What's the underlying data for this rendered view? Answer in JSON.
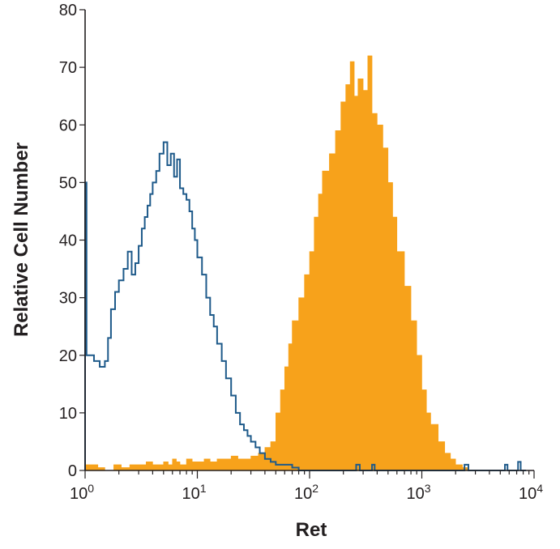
{
  "chart_data": {
    "type": "histogram",
    "title": "",
    "xlabel": "Ret",
    "ylabel": "Relative Cell Number",
    "xscale": "log",
    "xlim": [
      1,
      10000
    ],
    "ylim": [
      0,
      80
    ],
    "grid": false,
    "legend": "none",
    "y_ticks": [
      0,
      10,
      20,
      30,
      40,
      50,
      60,
      70,
      80
    ],
    "x_ticks": [
      {
        "value": 1,
        "base": "10",
        "exp": "0"
      },
      {
        "value": 10,
        "base": "10",
        "exp": "1"
      },
      {
        "value": 100,
        "base": "10",
        "exp": "2"
      },
      {
        "value": 1000,
        "base": "10",
        "exp": "3"
      },
      {
        "value": 10000,
        "base": "10",
        "exp": "4"
      }
    ],
    "series": [
      {
        "style": "filled",
        "color": "#f7a21b",
        "x": [
          1.0,
          1.12,
          1.3,
          1.5,
          1.8,
          2.1,
          2.5,
          3.0,
          3.5,
          4.0,
          4.5,
          5.0,
          5.5,
          6.0,
          6.5,
          7.0,
          8.0,
          9.0,
          10.0,
          11.5,
          13.0,
          15.0,
          17.0,
          20.0,
          23.0,
          26.0,
          30.0,
          35.0,
          40.0,
          45.0,
          50.0,
          55.0,
          60.0,
          65.0,
          70.0,
          80.0,
          90.0,
          100.0,
          110.0,
          120.0,
          130.0,
          150.0,
          170.0,
          190.0,
          210.0,
          230.0,
          250.0,
          270.0,
          300.0,
          330.0,
          360.0,
          400.0,
          450.0,
          500.0,
          550.0,
          600.0,
          700.0,
          800.0,
          900.0,
          1000.0,
          1100.0,
          1200.0,
          1400.0,
          1600.0,
          1800.0,
          2000.0,
          2300.0,
          2600.0
        ],
        "values": [
          1,
          1,
          0.5,
          0,
          1,
          0.5,
          1,
          1,
          1.5,
          1,
          1,
          1.5,
          1,
          2,
          1.5,
          1,
          2,
          1.5,
          1.5,
          2,
          1.5,
          2,
          2,
          2.5,
          2,
          2,
          2.5,
          3,
          4,
          5,
          10,
          14,
          18,
          22,
          26,
          30,
          34,
          38,
          44,
          48,
          52,
          55,
          59,
          64,
          67,
          71,
          65,
          68,
          66,
          72,
          62,
          60,
          56,
          50,
          44,
          38,
          32,
          26,
          20,
          14,
          10,
          8,
          5,
          3,
          2,
          1,
          0.5,
          0
        ]
      },
      {
        "style": "outline",
        "color": "#1e5a8a",
        "x": [
          1.0,
          1.03,
          1.1,
          1.2,
          1.35,
          1.5,
          1.6,
          1.7,
          1.85,
          2.0,
          2.2,
          2.4,
          2.6,
          2.8,
          3.0,
          3.2,
          3.4,
          3.6,
          3.8,
          4.0,
          4.3,
          4.6,
          5.0,
          5.4,
          5.8,
          6.2,
          6.6,
          7.0,
          7.5,
          8.0,
          8.5,
          9.0,
          9.5,
          10.0,
          11.0,
          12.0,
          13.0,
          14.0,
          15.0,
          16.5,
          18.0,
          20.0,
          22.0,
          24.0,
          26.0,
          28.0,
          30.0,
          33.0,
          36.0,
          40.0,
          45.0,
          50.0,
          60.0,
          70.0,
          80.0,
          100.0,
          200.0,
          260.0,
          280.0,
          360.0,
          380.0,
          2400.0,
          2600.0,
          5500.0,
          5800.0,
          7200.0,
          7600.0,
          8200.0
        ],
        "values": [
          50,
          20,
          20,
          19,
          18,
          19,
          23,
          28,
          31,
          33,
          35,
          38,
          34,
          36,
          39,
          42,
          44,
          46,
          48,
          50,
          52,
          55,
          57,
          53,
          55,
          51,
          54,
          49,
          48,
          47,
          45,
          42,
          40,
          37,
          34,
          30,
          27,
          25,
          22,
          19,
          16,
          13,
          10,
          8,
          7,
          6,
          5,
          4,
          3,
          2,
          1.5,
          1,
          1,
          0.5,
          0,
          0,
          0,
          1,
          0,
          1,
          0,
          1,
          0,
          1,
          0,
          1.5,
          0,
          0
        ]
      }
    ]
  }
}
